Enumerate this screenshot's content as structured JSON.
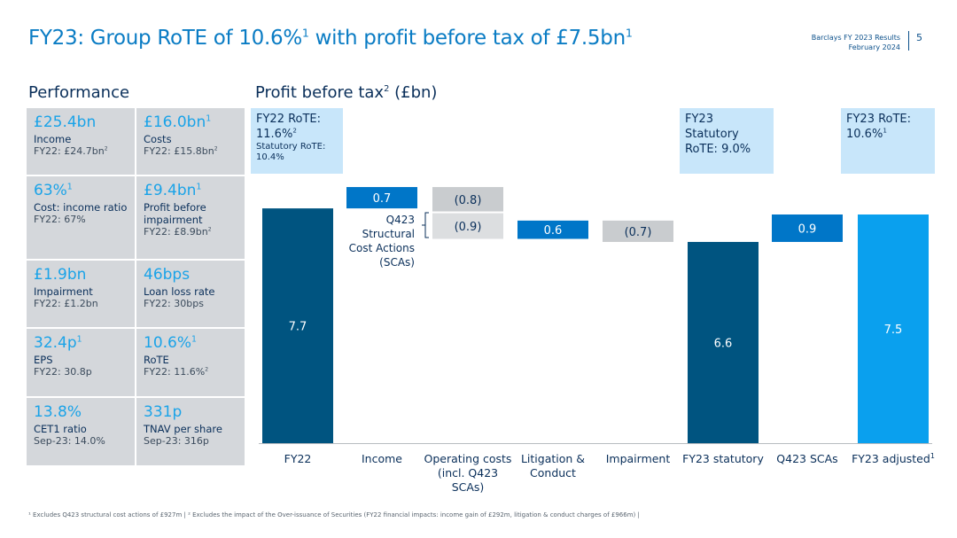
{
  "header": {
    "title_main": "FY23: Group RoTE of 10.6%",
    "title_sup1": "1",
    "title_mid": " with profit before tax of £7.5bn",
    "title_sup2": "1",
    "brand_line1": "Barclays FY 2023 Results",
    "brand_line2": "February 2024",
    "page_number": "5"
  },
  "performance": {
    "heading": "Performance",
    "kpis": [
      {
        "value": "£25.4bn",
        "sup": "",
        "label": "Income",
        "sub": "FY22: £24.7bn",
        "sub_sup": "2"
      },
      {
        "value": "£16.0bn",
        "sup": "1",
        "label": "Costs",
        "sub": "FY22: £15.8bn",
        "sub_sup": "2"
      },
      {
        "value": "63%",
        "sup": "1",
        "label": "Cost: income ratio",
        "sub": "FY22: 67%",
        "sub_sup": ""
      },
      {
        "value": "£9.4bn",
        "sup": "1",
        "label": "Profit before impairment",
        "sub": "FY22: £8.9bn",
        "sub_sup": "2"
      },
      {
        "value": "£1.9bn",
        "sup": "",
        "label": "Impairment",
        "sub": "FY22: £1.2bn",
        "sub_sup": ""
      },
      {
        "value": "46bps",
        "sup": "",
        "label": "Loan loss rate",
        "sub": "FY22: 30bps",
        "sub_sup": ""
      },
      {
        "value": "32.4p",
        "sup": "1",
        "label": "EPS",
        "sub": "FY22: 30.8p",
        "sub_sup": ""
      },
      {
        "value": "10.6%",
        "sup": "1",
        "label": "RoTE",
        "sub": "FY22: 11.6%",
        "sub_sup": "2"
      },
      {
        "value": "13.8%",
        "sup": "",
        "label": "CET1 ratio",
        "sub": "Sep-23: 14.0%",
        "sub_sup": ""
      },
      {
        "value": "331p",
        "sup": "",
        "label": "TNAV per share",
        "sub": "Sep-23: 316p",
        "sub_sup": ""
      }
    ]
  },
  "callouts": {
    "fy22": {
      "line1": "FY22 RoTE:",
      "line2": "11.6%",
      "line2_sup": "2",
      "small1": "Statutory RoTE:",
      "small2": "10.4%"
    },
    "fy23_stat": {
      "line1": "FY23",
      "line2": "Statutory",
      "line3": "RoTE: 9.0%"
    },
    "fy23_adj": {
      "line1": "FY23 RoTE:",
      "line2": "10.6%",
      "line2_sup": "1"
    }
  },
  "sca_label": {
    "line1": "Q423",
    "line2": "Structural",
    "line3": "Cost Actions",
    "line4": "(SCAs)"
  },
  "chart_data": {
    "type": "bar",
    "title": "Profit before tax",
    "title_sup": "2",
    "title_unit": " (£bn)",
    "subtype": "waterfall",
    "categories": [
      "FY22",
      "Income",
      "Operating costs (incl. Q423 SCAs)",
      "Litigation & Conduct",
      "Impairment",
      "FY23 statutory",
      "Q423 SCAs",
      "FY23 adjusted"
    ],
    "category_lines": [
      [
        "FY22"
      ],
      [
        "Income"
      ],
      [
        "Operating costs",
        "(incl. Q423",
        "SCAs)"
      ],
      [
        "Litigation &",
        "Conduct"
      ],
      [
        "Impairment"
      ],
      [
        "FY23 statutory"
      ],
      [
        "Q423 SCAs"
      ],
      [
        "FY23 adjusted"
      ]
    ],
    "last_category_sup": "1",
    "bars": [
      {
        "category": "FY22",
        "kind": "total",
        "value": 7.7,
        "label": "7.7",
        "color": "#005480"
      },
      {
        "category": "Income",
        "kind": "increase",
        "value": 0.7,
        "label": "0.7",
        "color": "#0076c8"
      },
      {
        "category": "Operating costs (incl. Q423 SCAs)",
        "kind": "decrease",
        "value": -0.8,
        "label": "(0.8)",
        "color": "#c9cccf"
      },
      {
        "category": "Operating costs (incl. Q423 SCAs)",
        "kind": "decrease",
        "value": -0.9,
        "label": "(0.9)",
        "color": "#dcdee0",
        "note": "Q423 Structural Cost Actions (SCAs)"
      },
      {
        "category": "Litigation & Conduct",
        "kind": "increase",
        "value": 0.6,
        "label": "0.6",
        "color": "#0076c8"
      },
      {
        "category": "Impairment",
        "kind": "decrease",
        "value": -0.7,
        "label": "(0.7)",
        "color": "#c9cccf"
      },
      {
        "category": "FY23 statutory",
        "kind": "total",
        "value": 6.6,
        "label": "6.6",
        "color": "#005480"
      },
      {
        "category": "Q423 SCAs",
        "kind": "increase",
        "value": 0.9,
        "label": "0.9",
        "color": "#0076c8"
      },
      {
        "category": "FY23 adjusted",
        "kind": "total",
        "value": 7.5,
        "label": "7.5",
        "color": "#0aa0ee"
      }
    ]
  },
  "footnote": "¹ Excludes Q423 structural cost actions of £927m | ² Excludes the impact of the Over-issuance of Securities (FY22 financial impacts: income gain of £292m, litigation & conduct charges of £966m) |"
}
